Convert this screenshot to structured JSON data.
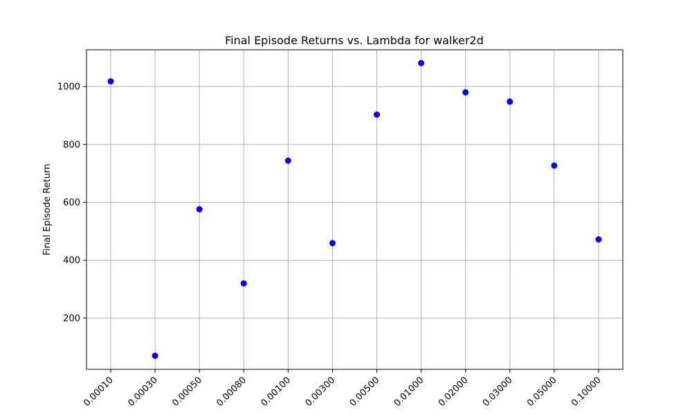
{
  "chart_data": {
    "type": "scatter",
    "title": "Final Episode Returns vs. Lambda for walker2d",
    "xlabel": "",
    "ylabel": "Final Episode Return",
    "categories": [
      "0.00010",
      "0.00030",
      "0.00050",
      "0.00080",
      "0.00100",
      "0.00300",
      "0.00500",
      "0.01000",
      "0.02000",
      "0.03000",
      "0.05000",
      "0.10000"
    ],
    "values": [
      1018,
      70,
      576,
      320,
      744,
      459,
      903,
      1081,
      980,
      948,
      727,
      472
    ],
    "y_ticks": [
      200,
      400,
      600,
      800,
      1000
    ],
    "ylim": [
      23,
      1127
    ],
    "grid": true,
    "legend": "none",
    "colors": {
      "marker": "#0000ff",
      "grid": "#b0b0b0",
      "axis": "#000000"
    }
  }
}
